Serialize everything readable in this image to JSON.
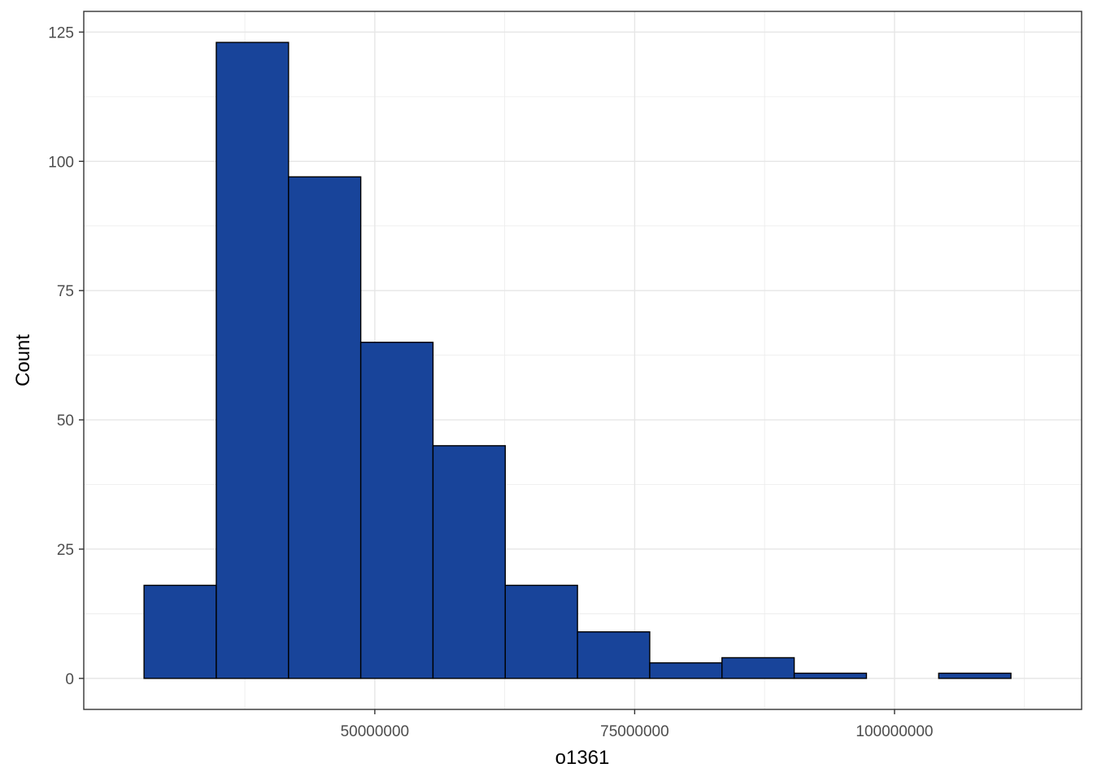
{
  "chart_data": {
    "type": "histogram",
    "xlabel": "o1361",
    "ylabel": "Count",
    "x_ticks": [
      50000000,
      75000000,
      100000000
    ],
    "x_tick_labels": [
      "50000000",
      "75000000",
      "100000000"
    ],
    "y_ticks": [
      0,
      25,
      50,
      75,
      100,
      125
    ],
    "y_tick_labels": [
      "0",
      "25",
      "50",
      "75",
      "100",
      "125"
    ],
    "xlim": [
      22000000,
      118000000
    ],
    "ylim": [
      -6,
      129
    ],
    "bin_edges": [
      27800000,
      34750000,
      41700000,
      48650000,
      55600000,
      62550000,
      69500000,
      76450000,
      83400000,
      90350000,
      97300000,
      104250000,
      111200000
    ],
    "counts": [
      18,
      123,
      97,
      65,
      45,
      18,
      9,
      3,
      4,
      1,
      0,
      1
    ],
    "fill_color": "#18449a",
    "edge_color": "#000000",
    "grid": true,
    "theme": "bw"
  }
}
